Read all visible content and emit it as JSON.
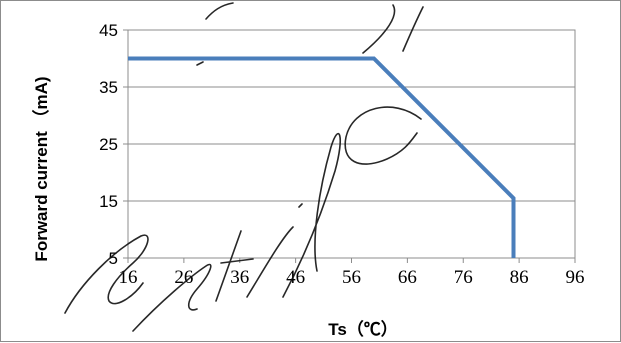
{
  "chart_data": {
    "type": "line",
    "title": "",
    "xlabel": "Ts（℃）",
    "ylabel": "Forward current （mA)",
    "xlim": [
      16,
      96
    ],
    "ylim": [
      5,
      45
    ],
    "x_ticks": [
      "16",
      "26",
      "36",
      "46",
      "56",
      "66",
      "76",
      "86",
      "96"
    ],
    "y_ticks": [
      "5",
      "15",
      "25",
      "35",
      "45"
    ],
    "grid": "horizontal",
    "legend": "none",
    "series": [
      {
        "color": "#4a7ebb",
        "points": [
          {
            "x": 16,
            "y": 40
          },
          {
            "x": 60,
            "y": 40
          },
          {
            "x": 85,
            "y": 15.5
          },
          {
            "x": 85,
            "y": 5
          }
        ]
      }
    ]
  }
}
